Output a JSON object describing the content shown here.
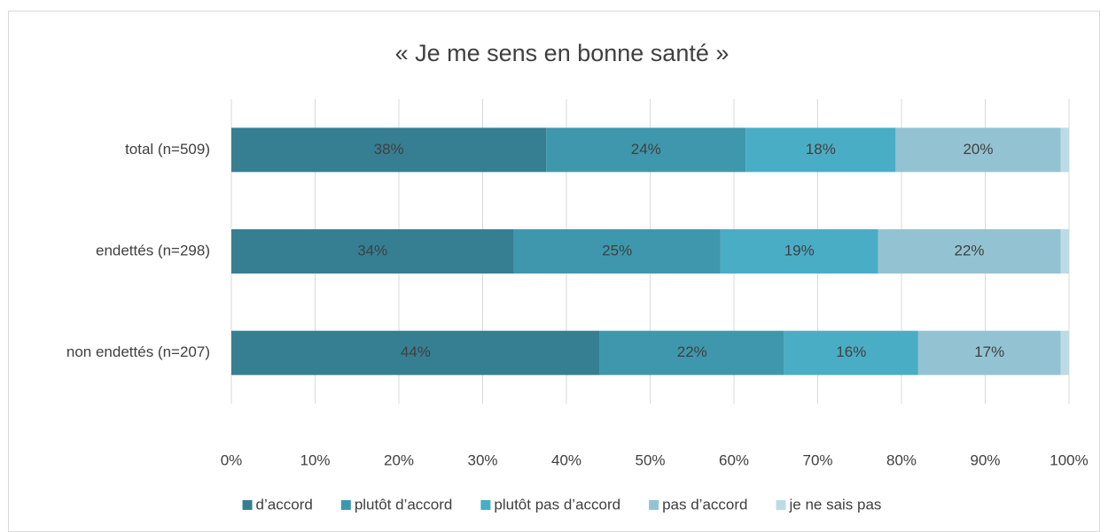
{
  "chart_data": {
    "type": "stacked-bar-horizontal",
    "title": "« Je me sens en bonne santé »",
    "categories": [
      "total (n=509)",
      "endettés (n=298)",
      "non endettés (n=207)"
    ],
    "series": [
      {
        "name": "d’accord",
        "color": "#367f93",
        "values": [
          37.6,
          33.7,
          44.0
        ],
        "value_labels": [
          "38%",
          "34%",
          "44%"
        ]
      },
      {
        "name": "plutôt d’accord",
        "color": "#3f97ad",
        "values": [
          23.8,
          24.7,
          22.0
        ],
        "value_labels": [
          "24%",
          "25%",
          "22%"
        ]
      },
      {
        "name": "plutôt pas d’accord",
        "color": "#4aadc6",
        "values": [
          17.9,
          18.8,
          16.0
        ],
        "value_labels": [
          "18%",
          "19%",
          "16%"
        ]
      },
      {
        "name": "pas d’accord",
        "color": "#93c3d3",
        "values": [
          19.7,
          21.8,
          17.0
        ],
        "value_labels": [
          "20%",
          "22%",
          "17%"
        ]
      },
      {
        "name": "je ne sais pas",
        "color": "#bcdbe5",
        "values": [
          1.0,
          1.0,
          1.0
        ]
      }
    ],
    "xlim": [
      0,
      100
    ],
    "xticks": [
      {
        "value": 0,
        "label": "0%"
      },
      {
        "value": 10,
        "label": "10%"
      },
      {
        "value": 20,
        "label": "20%"
      },
      {
        "value": 30,
        "label": "30%"
      },
      {
        "value": 40,
        "label": "40%"
      },
      {
        "value": 50,
        "label": "50%"
      },
      {
        "value": 60,
        "label": "60%"
      },
      {
        "value": 70,
        "label": "70%"
      },
      {
        "value": 80,
        "label": "80%"
      },
      {
        "value": 90,
        "label": "90%"
      },
      {
        "value": 100,
        "label": "100%"
      }
    ],
    "grid": true,
    "legend": "bottom"
  }
}
